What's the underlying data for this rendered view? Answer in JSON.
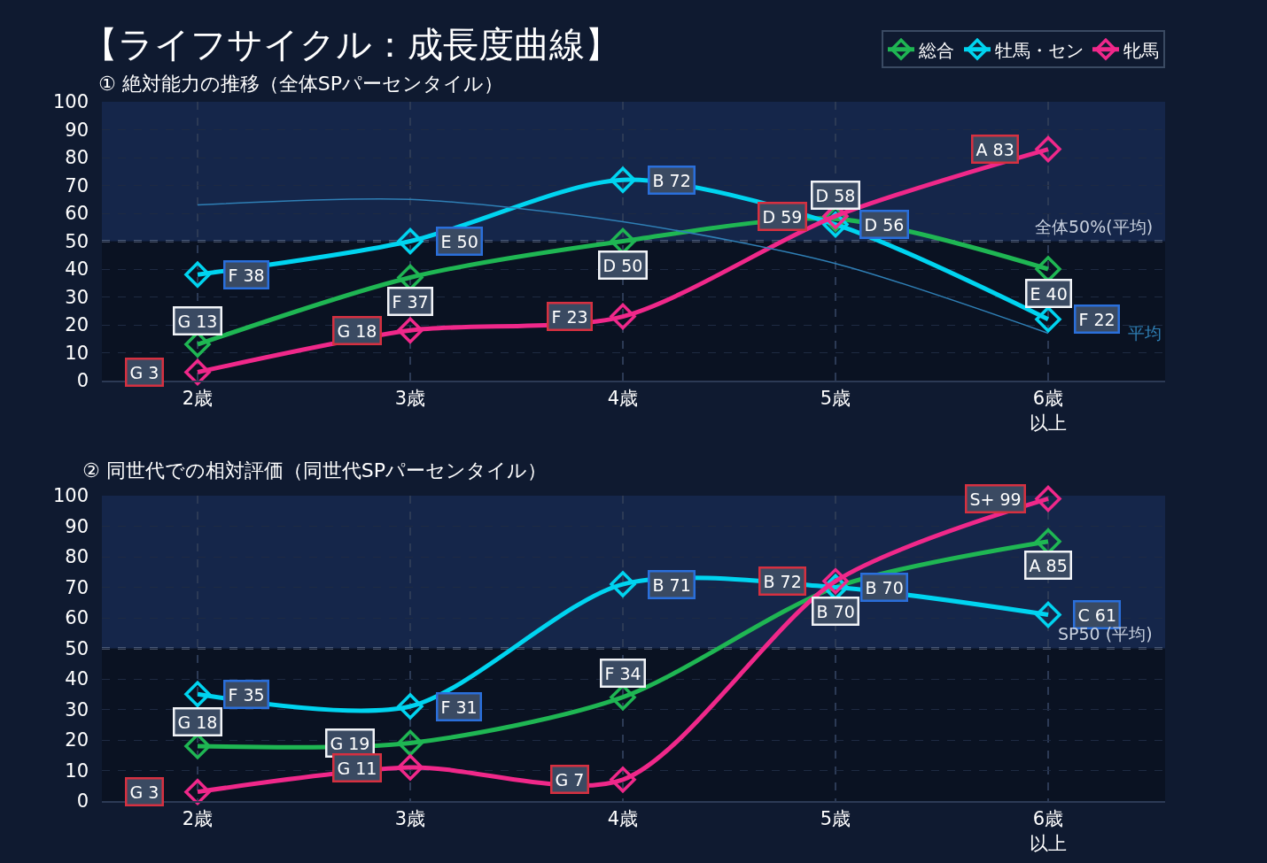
{
  "chart_data": [
    {
      "type": "line",
      "title": "【ライフサイクル：成長度曲線】",
      "subtitle": "① 絶対能力の推移（全体SPパーセンタイル）",
      "categories": [
        "2歳",
        "3歳",
        "4歳",
        "5歳",
        "6歳以上"
      ],
      "series": [
        {
          "name": "総合",
          "color": "#1fb653",
          "values": [
            13,
            37,
            50,
            58,
            40
          ],
          "value_labels": [
            "G 13",
            "F 37",
            "D 50",
            "D 58",
            "E 40"
          ]
        },
        {
          "name": "牡馬・セン",
          "color": "#00d4f0",
          "values": [
            38,
            50,
            72,
            56,
            22
          ],
          "value_labels": [
            "F 38",
            "E 50",
            "B 72",
            "D 56",
            "F 22"
          ]
        },
        {
          "name": "牝馬",
          "color": "#f0288a",
          "values": [
            3,
            18,
            23,
            59,
            83
          ],
          "value_labels": [
            "G 3",
            "G 18",
            "F 23",
            "D 59",
            "A 83"
          ]
        },
        {
          "name": "平均",
          "color": "#2f7fb5",
          "marker": "none",
          "values": [
            63,
            65,
            57,
            42,
            17
          ]
        }
      ],
      "ylim": [
        0,
        100
      ],
      "yticks": [
        0,
        10,
        20,
        30,
        40,
        50,
        60,
        70,
        80,
        90,
        100
      ],
      "grid": true,
      "legend": "top right",
      "marker": "diamond",
      "line_style": "solid",
      "ref_lines": [
        {
          "axis": "y",
          "value": 50,
          "label": "全体50%(平均)",
          "line_style": "dashed",
          "color": "#7d8aa3"
        }
      ],
      "bands": [
        {
          "axis": "y",
          "from": 50,
          "to": 100,
          "color": "#15264a"
        }
      ]
    },
    {
      "type": "line",
      "title": "② 同世代での相対評価（同世代SPパーセンタイル）",
      "categories": [
        "2歳",
        "3歳",
        "4歳",
        "5歳",
        "6歳以上"
      ],
      "series": [
        {
          "color": "#1fb653",
          "values": [
            18,
            19,
            34,
            70,
            85
          ],
          "value_labels": [
            "G 18",
            "G 19",
            "F 34",
            "B 70",
            "A 85"
          ]
        },
        {
          "color": "#00d4f0",
          "values": [
            35,
            31,
            71,
            70,
            61
          ],
          "value_labels": [
            "F 35",
            "F 31",
            "B 71",
            "B 70",
            "C 61"
          ]
        },
        {
          "color": "#f0288a",
          "values": [
            3,
            11,
            7,
            72,
            99
          ],
          "value_labels": [
            "G 3",
            "G 11",
            "G 7",
            "B 72",
            "S+ 99"
          ]
        }
      ],
      "ylim": [
        0,
        100
      ],
      "yticks": [
        0,
        10,
        20,
        30,
        40,
        50,
        60,
        70,
        80,
        90,
        100
      ],
      "grid": true,
      "marker": "diamond",
      "line_style": "solid",
      "ref_lines": [
        {
          "axis": "y",
          "value": 50,
          "label": "SP50 (平均)",
          "line_style": "dashed",
          "color": "#7d8aa3"
        }
      ],
      "bands": [
        {
          "axis": "y",
          "from": 50,
          "to": 100,
          "color": "#15264a"
        }
      ]
    }
  ]
}
